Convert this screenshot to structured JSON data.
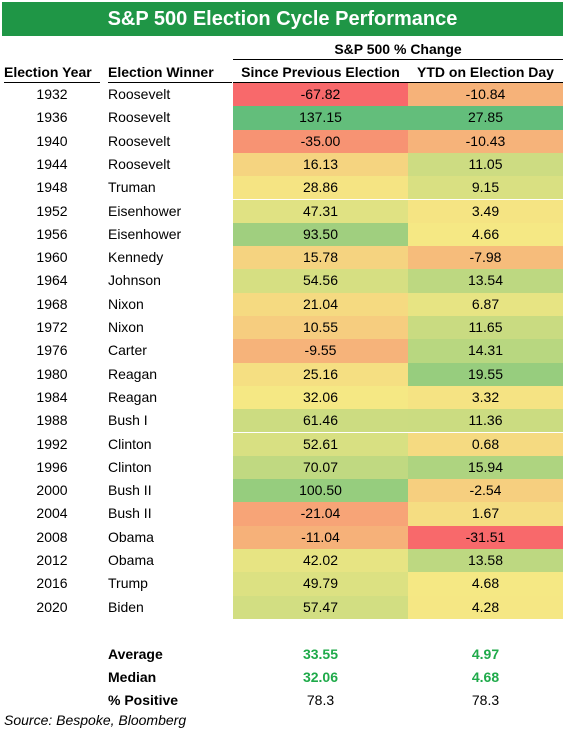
{
  "title": "S&P 500 Election Cycle Performance",
  "group_header": "S&P 500 % Change",
  "headers": {
    "year": "Election Year",
    "winner": "Election Winner",
    "since": "Since Previous Election",
    "ytd": "YTD on Election Day"
  },
  "chart_data": {
    "type": "table",
    "title": "S&P 500 Election Cycle Performance",
    "columns": [
      "Election Year",
      "Election Winner",
      "Since Previous Election",
      "YTD on Election Day"
    ],
    "rows": [
      {
        "year": "1932",
        "winner": "Roosevelt",
        "since": "-67.82",
        "ytd": "-10.84"
      },
      {
        "year": "1936",
        "winner": "Roosevelt",
        "since": "137.15",
        "ytd": "27.85"
      },
      {
        "year": "1940",
        "winner": "Roosevelt",
        "since": "-35.00",
        "ytd": "-10.43"
      },
      {
        "year": "1944",
        "winner": "Roosevelt",
        "since": "16.13",
        "ytd": "11.05"
      },
      {
        "year": "1948",
        "winner": "Truman",
        "since": "28.86",
        "ytd": "9.15"
      },
      {
        "year": "1952",
        "winner": "Eisenhower",
        "since": "47.31",
        "ytd": "3.49"
      },
      {
        "year": "1956",
        "winner": "Eisenhower",
        "since": "93.50",
        "ytd": "4.66"
      },
      {
        "year": "1960",
        "winner": "Kennedy",
        "since": "15.78",
        "ytd": "-7.98"
      },
      {
        "year": "1964",
        "winner": "Johnson",
        "since": "54.56",
        "ytd": "13.54"
      },
      {
        "year": "1968",
        "winner": "Nixon",
        "since": "21.04",
        "ytd": "6.87"
      },
      {
        "year": "1972",
        "winner": "Nixon",
        "since": "10.55",
        "ytd": "11.65"
      },
      {
        "year": "1976",
        "winner": "Carter",
        "since": "-9.55",
        "ytd": "14.31"
      },
      {
        "year": "1980",
        "winner": "Reagan",
        "since": "25.16",
        "ytd": "19.55"
      },
      {
        "year": "1984",
        "winner": "Reagan",
        "since": "32.06",
        "ytd": "3.32"
      },
      {
        "year": "1988",
        "winner": "Bush I",
        "since": "61.46",
        "ytd": "11.36"
      },
      {
        "year": "1992",
        "winner": "Clinton",
        "since": "52.61",
        "ytd": "0.68"
      },
      {
        "year": "1996",
        "winner": "Clinton",
        "since": "70.07",
        "ytd": "15.94"
      },
      {
        "year": "2000",
        "winner": "Bush II",
        "since": "100.50",
        "ytd": "-2.54"
      },
      {
        "year": "2004",
        "winner": "Bush II",
        "since": "-21.04",
        "ytd": "1.67"
      },
      {
        "year": "2008",
        "winner": "Obama",
        "since": "-11.04",
        "ytd": "-31.51"
      },
      {
        "year": "2012",
        "winner": "Obama",
        "since": "42.02",
        "ytd": "13.58"
      },
      {
        "year": "2016",
        "winner": "Trump",
        "since": "49.79",
        "ytd": "4.68"
      },
      {
        "year": "2020",
        "winner": "Biden",
        "since": "57.47",
        "ytd": "4.28"
      }
    ],
    "summary": [
      {
        "label": "Average",
        "since": "33.55",
        "ytd": "4.97"
      },
      {
        "label": "Median",
        "since": "32.06",
        "ytd": "4.68"
      },
      {
        "label": "% Positive",
        "since": "78.3",
        "ytd": "78.3"
      }
    ],
    "color_scale": {
      "low": "#f8696b",
      "mid": "#f5e884",
      "high": "#63be7b"
    }
  },
  "source": "Source: Bespoke, Bloomberg"
}
